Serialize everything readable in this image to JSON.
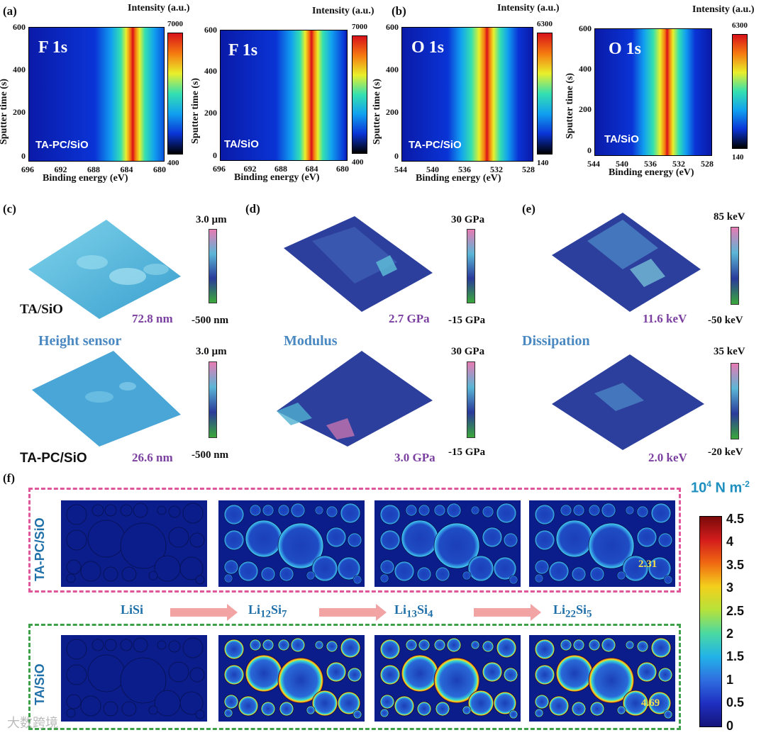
{
  "panels": {
    "a": "(a)",
    "b": "(b)",
    "c": "(c)",
    "d": "(d)",
    "e": "(e)",
    "f": "(f)"
  },
  "xps": {
    "intensity_label": "Intensity (a.u.)",
    "y_label": "Sputter time (s)",
    "x_label": "Binding energy (eV)",
    "maps": [
      {
        "element": "F 1s",
        "sample": "TA-PC/SiO",
        "x_ticks": [
          "696",
          "692",
          "688",
          "684",
          "680"
        ],
        "y_ticks": [
          "600",
          "400",
          "200",
          "0"
        ],
        "cb_max": "7000",
        "cb_min": "400"
      },
      {
        "element": "F 1s",
        "sample": "TA/SiO",
        "x_ticks": [
          "696",
          "692",
          "688",
          "684",
          "680"
        ],
        "y_ticks": [
          "600",
          "400",
          "200",
          "0"
        ],
        "cb_max": "7000",
        "cb_min": "400"
      },
      {
        "element": "O 1s",
        "sample": "TA-PC/SiO",
        "x_ticks": [
          "544",
          "540",
          "536",
          "532",
          "528"
        ],
        "y_ticks": [
          "600",
          "400",
          "200",
          "0"
        ],
        "cb_max": "6300",
        "cb_min": "140"
      },
      {
        "element": "O 1s",
        "sample": "TA/SiO",
        "x_ticks": [
          "544",
          "540",
          "536",
          "532",
          "528"
        ],
        "y_ticks": [
          "600",
          "400",
          "200",
          "0"
        ],
        "cb_max": "6300",
        "cb_min": "140"
      }
    ]
  },
  "afm": {
    "height": {
      "title": "Height sensor",
      "top": {
        "max": "3.0 µm",
        "min": "-500 nm",
        "value": "72.8 nm",
        "sample": "TA/SiO"
      },
      "bottom": {
        "max": "3.0 µm",
        "min": "-500 nm",
        "value": "26.6 nm",
        "sample": "TA-PC/SiO"
      }
    },
    "modulus": {
      "title": "Modulus",
      "top": {
        "max": "30 GPa",
        "min": "-15 GPa",
        "value": "2.7 GPa"
      },
      "bottom": {
        "max": "30 GPa",
        "min": "-15 GPa",
        "value": "3.0 GPa"
      }
    },
    "dissipation": {
      "title": "Dissipation",
      "top": {
        "max": "85 keV",
        "min": "-50 keV",
        "value": "11.6 keV"
      },
      "bottom": {
        "max": "35 keV",
        "min": "-20 keV",
        "value": "2.0 keV"
      }
    }
  },
  "simulation": {
    "unit_base": "10",
    "unit_exp": "4",
    "unit_rest": "N m",
    "unit_rest_exp": "-2",
    "rows": [
      "TA-PC/SiO",
      "TA/SiO"
    ],
    "phases": [
      {
        "base": "LiSi",
        "parts": []
      },
      {
        "base": "Li",
        "parts": [
          {
            "sub": "12"
          },
          {
            "txt": "Si"
          },
          {
            "sub": "7"
          }
        ]
      },
      {
        "base": "Li",
        "parts": [
          {
            "sub": "13"
          },
          {
            "txt": "Si"
          },
          {
            "sub": "4"
          }
        ]
      },
      {
        "base": "Li",
        "parts": [
          {
            "sub": "22"
          },
          {
            "txt": "Si"
          },
          {
            "sub": "5"
          }
        ]
      }
    ],
    "max_top": "2.31",
    "max_bottom": "4.69",
    "scale_ticks": [
      "4.5",
      "4",
      "3.5",
      "3",
      "2.5",
      "2",
      "1.5",
      "1",
      "0.5",
      "0"
    ]
  },
  "watermark": "大数跨境",
  "colors": {
    "pink": "#e0569a",
    "green": "#3fa04a",
    "blue_text": "#1f6fa8",
    "purple": "#7b3fa0"
  }
}
